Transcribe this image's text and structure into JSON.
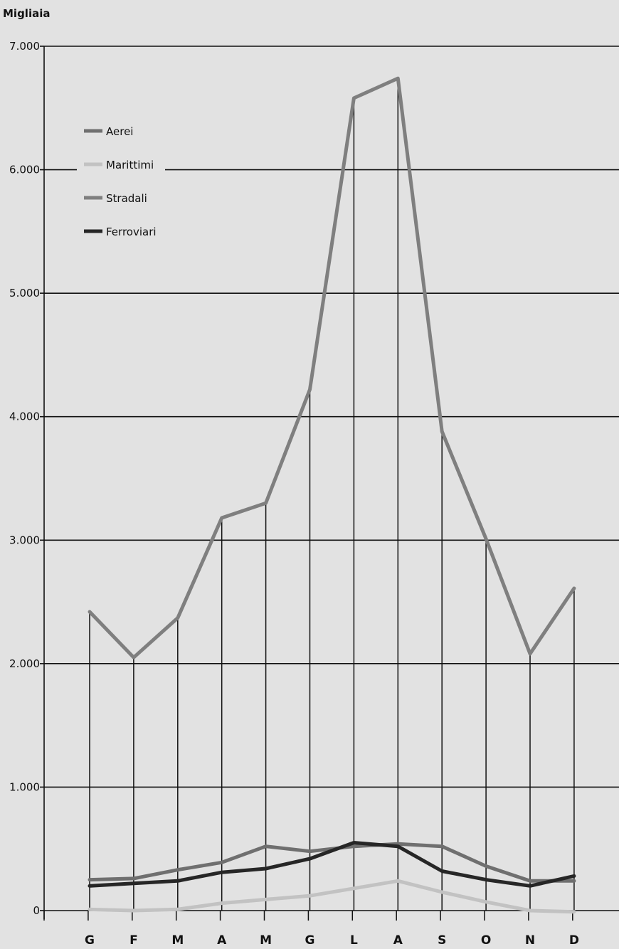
{
  "chart_data": {
    "type": "line",
    "ylabel": "Migliaia",
    "categories": [
      "G",
      "F",
      "M",
      "A",
      "M",
      "G",
      "L",
      "A",
      "S",
      "O",
      "N",
      "D"
    ],
    "ylim": [
      0,
      7000
    ],
    "yticks": [
      0,
      1000,
      2000,
      3000,
      4000,
      5000,
      6000,
      7000
    ],
    "ytick_labels": [
      "0",
      "1.000",
      "2.000",
      "3.000",
      "4.000",
      "5.000",
      "6.000",
      "7.000"
    ],
    "grid": true,
    "legend_position": "top-left",
    "series": [
      {
        "name": "Aerei",
        "color": "#6f6f6f",
        "values": [
          250,
          260,
          330,
          390,
          520,
          480,
          520,
          540,
          520,
          360,
          240,
          240
        ]
      },
      {
        "name": "Marittimi",
        "color": "#c2c2c2",
        "values": [
          10,
          0,
          10,
          60,
          90,
          120,
          180,
          240,
          150,
          70,
          0,
          -10
        ]
      },
      {
        "name": "Stradali",
        "color": "#7f7f7f",
        "values": [
          2420,
          2050,
          2370,
          3180,
          3300,
          4220,
          6580,
          6740,
          3880,
          3010,
          2080,
          2610
        ]
      },
      {
        "name": "Ferroviari",
        "color": "#262626",
        "values": [
          200,
          220,
          240,
          310,
          340,
          420,
          550,
          520,
          320,
          250,
          200,
          280
        ]
      }
    ]
  }
}
